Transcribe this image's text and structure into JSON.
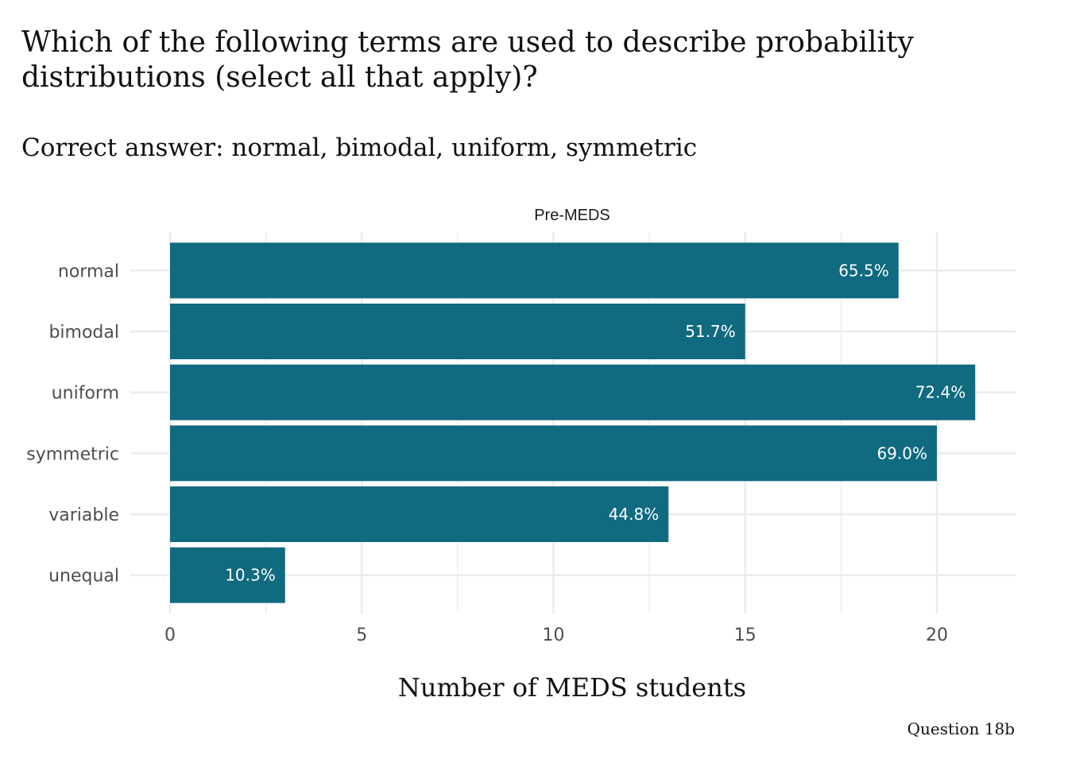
{
  "title": "Which of the following terms are used to describe probability distributions (select all that apply)?",
  "subtitle": "Correct answer: normal, bimodal, uniform, symmetric",
  "caption": "Question 18b",
  "chart_data": {
    "type": "bar",
    "orientation": "horizontal",
    "facet": "Pre-MEDS",
    "categories": [
      "normal",
      "bimodal",
      "uniform",
      "symmetric",
      "variable",
      "unequal"
    ],
    "values": [
      19,
      15,
      21,
      20,
      13,
      3
    ],
    "labels": [
      "65.5%",
      "51.7%",
      "72.4%",
      "69.0%",
      "44.8%",
      "10.3%"
    ],
    "xlabel": "Number of MEDS students",
    "ylabel": "",
    "xlim": [
      0,
      22
    ],
    "xticks": [
      "0",
      "5",
      "10",
      "15",
      "20"
    ],
    "grid": true,
    "bar_color": "#106a80",
    "grid_color": "#ebebeb"
  }
}
